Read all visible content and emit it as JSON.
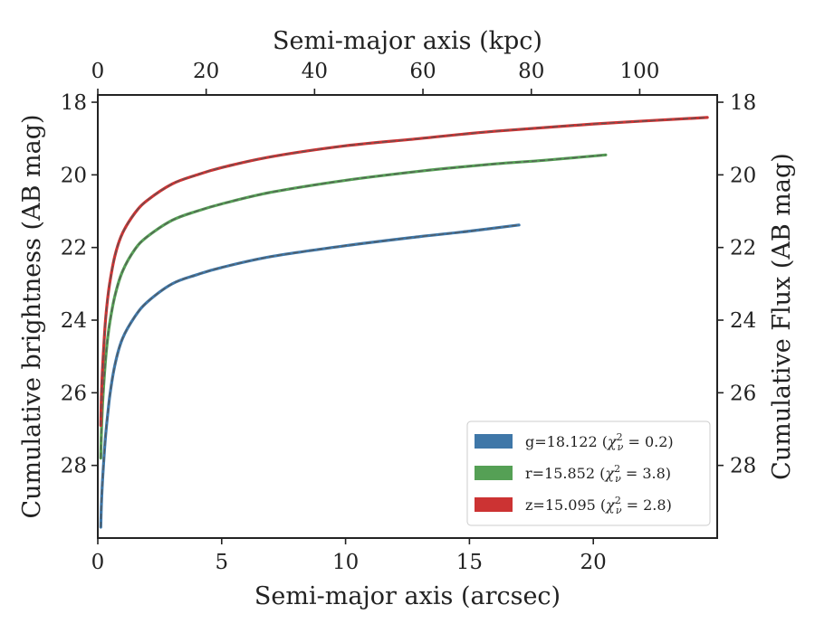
{
  "chart_data": {
    "type": "line",
    "title": "",
    "xlabel": "Semi-major axis (arcsec)",
    "xlabel_top": "Semi-major axis (kpc)",
    "ylabel": "Cumulative brightness (AB mag)",
    "ylabel_right": "Cumulative Flux (AB mag)",
    "xlim": [
      0,
      25
    ],
    "ylim": [
      30,
      17.8
    ],
    "y_inverted": true,
    "top_xlim_kpc": [
      0,
      114.3
    ],
    "grid": false,
    "legend_position": "lower-right",
    "x_ticks": [
      0,
      5,
      10,
      15,
      20
    ],
    "top_ticks": [
      0,
      20,
      40,
      60,
      80,
      100
    ],
    "y_ticks": [
      18,
      20,
      22,
      24,
      26,
      28
    ],
    "series": [
      {
        "name": "g=18.122 ($\\chi^2_\\nu = 0.2$)",
        "label_main": "g=18.122 (",
        "label_sym": "χ",
        "label_sup": "2",
        "label_sub": "ν",
        "label_tail": " = 0.2)",
        "color": "#3f77a8",
        "x": [
          0.12,
          0.15,
          0.2,
          0.3,
          0.4,
          0.5,
          0.7,
          1.0,
          1.5,
          2.0,
          3.0,
          4.0,
          5.0,
          7.0,
          10.0,
          13.0,
          15.0,
          17.0
        ],
        "y": [
          29.7,
          29.0,
          28.3,
          27.3,
          26.6,
          26.0,
          25.2,
          24.5,
          23.9,
          23.5,
          23.0,
          22.75,
          22.55,
          22.25,
          21.95,
          21.7,
          21.55,
          21.38
        ]
      },
      {
        "name": "r=15.852 ($\\chi^2_\\nu = 3.8$)",
        "label_main": "r=15.852 (",
        "label_sym": "χ",
        "label_sup": "2",
        "label_sub": "ν",
        "label_tail": " = 3.8)",
        "color": "#55a055",
        "x": [
          0.12,
          0.15,
          0.2,
          0.3,
          0.4,
          0.5,
          0.7,
          1.0,
          1.5,
          2.0,
          3.0,
          4.0,
          5.0,
          7.0,
          10.0,
          13.0,
          16.0,
          18.0,
          20.5
        ],
        "y": [
          27.8,
          27.0,
          26.2,
          25.2,
          24.5,
          24.0,
          23.3,
          22.65,
          22.05,
          21.7,
          21.25,
          21.0,
          20.8,
          20.48,
          20.15,
          19.9,
          19.7,
          19.6,
          19.45
        ]
      },
      {
        "name": "z=15.095 ($\\chi^2_\\nu = 2.8$)",
        "label_main": "z=15.095 (",
        "label_sym": "χ",
        "label_sup": "2",
        "label_sub": "ν",
        "label_tail": " = 2.8)",
        "color": "#cc3333",
        "x": [
          0.12,
          0.15,
          0.2,
          0.3,
          0.4,
          0.5,
          0.7,
          1.0,
          1.5,
          2.0,
          3.0,
          4.0,
          5.0,
          7.0,
          10.0,
          13.0,
          16.0,
          20.0,
          24.6
        ],
        "y": [
          26.9,
          26.0,
          25.2,
          24.1,
          23.4,
          22.9,
          22.2,
          21.6,
          21.05,
          20.7,
          20.25,
          20.0,
          19.8,
          19.5,
          19.2,
          19.0,
          18.8,
          18.6,
          18.42
        ]
      }
    ]
  }
}
